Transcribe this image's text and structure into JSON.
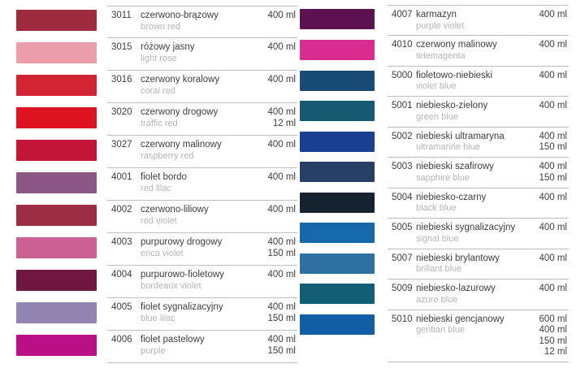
{
  "page": {
    "background": "#ffffff",
    "separator_color": "#bcbcbc"
  },
  "columns": [
    {
      "items": [
        {
          "code": "3011",
          "name_pl": "czerwono-brązowy",
          "name_en": "brown red",
          "volumes": [
            "400 ml"
          ],
          "color": "#9E2B3E"
        },
        {
          "code": "3015",
          "name_pl": "różowy jasny",
          "name_en": "light rose",
          "volumes": [
            "400 ml"
          ],
          "color": "#EC9DAB"
        },
        {
          "code": "3016",
          "name_pl": "czerwony koralowy",
          "name_en": "coral red",
          "volumes": [
            "400 ml"
          ],
          "color": "#D22433"
        },
        {
          "code": "3020",
          "name_pl": "czerwony drogowy",
          "name_en": "traffic red",
          "volumes": [
            "400 ml",
            "12 ml"
          ],
          "color": "#DE1321"
        },
        {
          "code": "3027",
          "name_pl": "czerwony malinowy",
          "name_en": "raspberry red",
          "volumes": [
            "400 ml"
          ],
          "color": "#C21538"
        },
        {
          "code": "4001",
          "name_pl": "fiolet bordo",
          "name_en": "red lilac",
          "volumes": [
            "400 ml"
          ],
          "color": "#8B5786"
        },
        {
          "code": "4002",
          "name_pl": "czerwono-liliowy",
          "name_en": "red violet",
          "volumes": [
            "400 ml"
          ],
          "color": "#9D2C45"
        },
        {
          "code": "4003",
          "name_pl": "purpurowy drogowy",
          "name_en": "erica violet",
          "volumes": [
            "400 ml",
            "150 ml"
          ],
          "color": "#CB6092"
        },
        {
          "code": "4004",
          "name_pl": "purpurowo-fioletowy",
          "name_en": "bordeaux violet",
          "volumes": [
            "400 ml"
          ],
          "color": "#6F1740"
        },
        {
          "code": "4005",
          "name_pl": "fiolet sygnalizacyjny",
          "name_en": "blue lilac",
          "volumes": [
            "400 ml",
            "150 ml"
          ],
          "color": "#9285B2"
        },
        {
          "code": "4006",
          "name_pl": "fiolet pastelowy",
          "name_en": "purple",
          "volumes": [
            "400 ml",
            "150 ml"
          ],
          "color": "#B90F87"
        }
      ]
    },
    {
      "items": [
        {
          "code": "4007",
          "name_pl": "karmazyn",
          "name_en": "purple violet",
          "volumes": [
            "400 ml"
          ],
          "color": "#5C1150"
        },
        {
          "code": "4010",
          "name_pl": "czerwony malinowy",
          "name_en": "telemagenta",
          "volumes": [
            "400 ml"
          ],
          "color": "#D92B90"
        },
        {
          "code": "5000",
          "name_pl": "fioletowo-niebieski",
          "name_en": "violet blue",
          "volumes": [
            "400 ml"
          ],
          "color": "#184B76"
        },
        {
          "code": "5001",
          "name_pl": "niebiesko-zielony",
          "name_en": "green blue",
          "volumes": [
            "400 ml"
          ],
          "color": "#155A70"
        },
        {
          "code": "5002",
          "name_pl": "niebieski ultramaryna",
          "name_en": "ultramarine blue",
          "volumes": [
            "400 ml",
            "150 ml"
          ],
          "color": "#193F92"
        },
        {
          "code": "5003",
          "name_pl": "niebieski szafirowy",
          "name_en": "sapphire blue",
          "volumes": [
            "400 ml",
            "150 ml"
          ],
          "color": "#273F66"
        },
        {
          "code": "5004",
          "name_pl": "niebiesko-czarny",
          "name_en": "black blue",
          "volumes": [
            "400 ml"
          ],
          "color": "#15222F"
        },
        {
          "code": "5005",
          "name_pl": "niebieski sygnalizacyjny",
          "name_en": "signal blue",
          "volumes": [
            "400 ml"
          ],
          "color": "#1568AA"
        },
        {
          "code": "5007",
          "name_pl": "niebieski brylantowy",
          "name_en": "brillant blue",
          "volumes": [
            "400 ml"
          ],
          "color": "#2E70A1"
        },
        {
          "code": "5009",
          "name_pl": "niebiesko-lazurowy",
          "name_en": "azure blue",
          "volumes": [
            "400 ml"
          ],
          "color": "#145E75"
        },
        {
          "code": "5010",
          "name_pl": "niebieski gencjanowy",
          "name_en": "gentian blue",
          "volumes": [
            "600 ml",
            "400 ml",
            "150 ml",
            "12 ml"
          ],
          "color": "#115EA5"
        }
      ]
    }
  ]
}
